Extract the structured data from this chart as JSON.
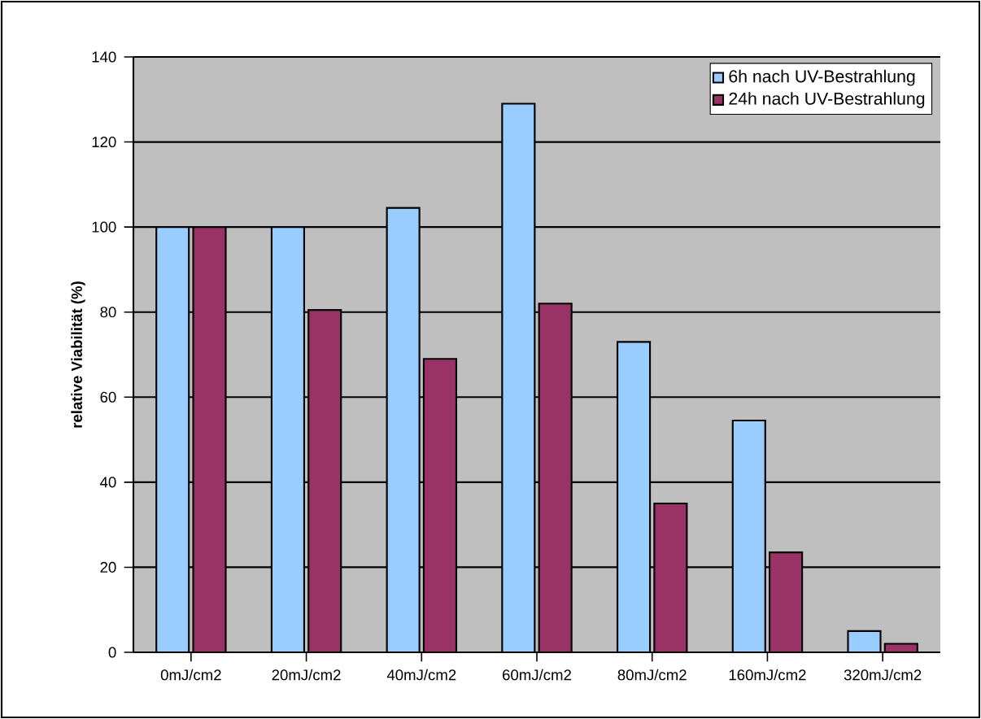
{
  "chart_data": {
    "type": "bar",
    "ylabel": "relative Viabilität (%)",
    "categories": [
      "0mJ/cm2",
      "20mJ/cm2",
      "40mJ/cm2",
      "60mJ/cm2",
      "80mJ/cm2",
      "160mJ/cm2",
      "320mJ/cm2"
    ],
    "series": [
      {
        "name": "6h nach UV-Bestrahlung",
        "color": "#99ccff",
        "values": [
          100,
          100,
          104.5,
          129,
          73,
          54.5,
          5
        ]
      },
      {
        "name": "24h nach UV-Bestrahlung",
        "color": "#993366",
        "values": [
          100,
          80.5,
          69,
          82,
          35,
          23.5,
          2
        ]
      }
    ],
    "ylim": [
      0,
      140
    ],
    "yticks": [
      0,
      20,
      40,
      60,
      80,
      100,
      120,
      140
    ],
    "grid": "y",
    "legend": "top right"
  }
}
